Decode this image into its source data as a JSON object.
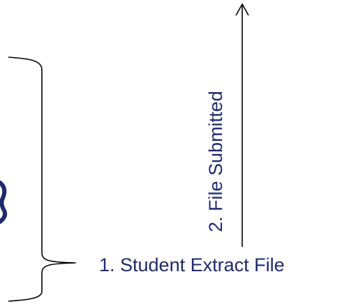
{
  "labels": {
    "file_submitted": "2. File Submitted",
    "student_extract_file": "1. Student Extract File"
  },
  "colors": {
    "label_text": "#1f2a6b",
    "stroke": "#000000"
  },
  "icons": {
    "arrow": "up-arrow-icon",
    "brace": "right-curly-brace-icon"
  }
}
